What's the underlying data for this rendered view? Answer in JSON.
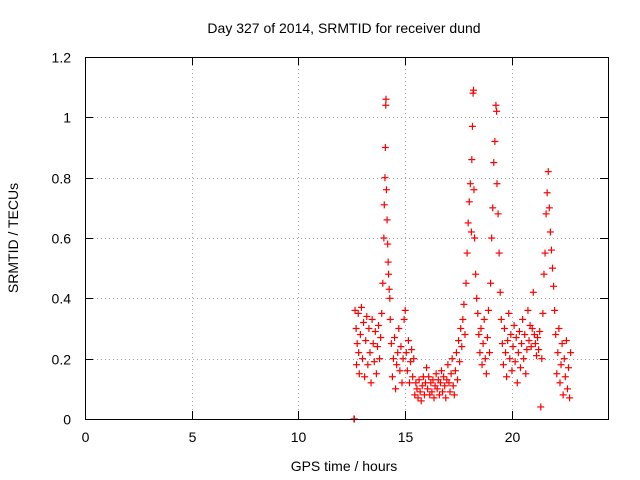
{
  "chart_data": {
    "type": "scatter",
    "title": "Day 327 of 2014, SRMTID for receiver dund",
    "xlabel": "GPS time / hours",
    "ylabel": "SRMTID / TECUs",
    "xlim": [
      0,
      24.5
    ],
    "ylim": [
      0,
      1.2
    ],
    "x_ticks": [
      0,
      5,
      10,
      15,
      20
    ],
    "x_tick_labels": [
      "0",
      "5",
      "10",
      "15",
      "20"
    ],
    "y_ticks": [
      0,
      0.2,
      0.4,
      0.6,
      0.8,
      1,
      1.2
    ],
    "y_tick_labels": [
      "0",
      "0.2",
      "0.4",
      "0.6",
      "0.8",
      "1",
      "1.2"
    ],
    "grid": true,
    "marker": "+",
    "marker_color": "#ff0000",
    "series": [
      {
        "name": "SRMTID",
        "points": [
          [
            12.6,
            0.0
          ],
          [
            12.62,
            0.0
          ],
          [
            12.65,
            0.36
          ],
          [
            12.7,
            0.3
          ],
          [
            12.72,
            0.18
          ],
          [
            12.75,
            0.25
          ],
          [
            12.8,
            0.35
          ],
          [
            12.82,
            0.22
          ],
          [
            12.85,
            0.15
          ],
          [
            12.9,
            0.28
          ],
          [
            12.95,
            0.37
          ],
          [
            13.0,
            0.2
          ],
          [
            13.05,
            0.32
          ],
          [
            13.1,
            0.14
          ],
          [
            13.15,
            0.26
          ],
          [
            13.2,
            0.34
          ],
          [
            13.25,
            0.18
          ],
          [
            13.3,
            0.3
          ],
          [
            13.35,
            0.22
          ],
          [
            13.4,
            0.12
          ],
          [
            13.45,
            0.33
          ],
          [
            13.5,
            0.25
          ],
          [
            13.55,
            0.19
          ],
          [
            13.6,
            0.29
          ],
          [
            13.65,
            0.15
          ],
          [
            13.7,
            0.24
          ],
          [
            13.75,
            0.31
          ],
          [
            13.8,
            0.2
          ],
          [
            13.85,
            0.27
          ],
          [
            13.9,
            0.35
          ],
          [
            13.95,
            0.45
          ],
          [
            14.0,
            0.6
          ],
          [
            14.02,
            0.71
          ],
          [
            14.05,
            0.8
          ],
          [
            14.07,
            0.9
          ],
          [
            14.09,
            1.04
          ],
          [
            14.1,
            1.06
          ],
          [
            14.12,
            0.76
          ],
          [
            14.15,
            0.66
          ],
          [
            14.18,
            0.58
          ],
          [
            14.2,
            0.52
          ],
          [
            14.22,
            0.48
          ],
          [
            14.25,
            0.43
          ],
          [
            14.28,
            0.4
          ],
          [
            14.3,
            0.33
          ],
          [
            14.35,
            0.25
          ],
          [
            14.4,
            0.14
          ],
          [
            14.45,
            0.2
          ],
          [
            14.5,
            0.27
          ],
          [
            14.55,
            0.1
          ],
          [
            14.6,
            0.18
          ],
          [
            14.65,
            0.22
          ],
          [
            14.7,
            0.3
          ],
          [
            14.75,
            0.16
          ],
          [
            14.8,
            0.24
          ],
          [
            14.85,
            0.12
          ],
          [
            14.9,
            0.2
          ],
          [
            14.95,
            0.33
          ],
          [
            15.0,
            0.36
          ],
          [
            15.05,
            0.22
          ],
          [
            15.1,
            0.16
          ],
          [
            15.15,
            0.26
          ],
          [
            15.2,
            0.12
          ],
          [
            15.25,
            0.19
          ],
          [
            15.3,
            0.23
          ],
          [
            15.35,
            0.14
          ],
          [
            15.4,
            0.2
          ],
          [
            15.45,
            0.08
          ],
          [
            15.5,
            0.12
          ],
          [
            15.55,
            0.1
          ],
          [
            15.6,
            0.07
          ],
          [
            15.65,
            0.13
          ],
          [
            15.7,
            0.09
          ],
          [
            15.75,
            0.06
          ],
          [
            15.8,
            0.11
          ],
          [
            15.85,
            0.14
          ],
          [
            15.9,
            0.08
          ],
          [
            15.95,
            0.12
          ],
          [
            16.0,
            0.17
          ],
          [
            16.05,
            0.1
          ],
          [
            16.1,
            0.14
          ],
          [
            16.15,
            0.08
          ],
          [
            16.2,
            0.12
          ],
          [
            16.25,
            0.09
          ],
          [
            16.3,
            0.13
          ],
          [
            16.35,
            0.07
          ],
          [
            16.4,
            0.11
          ],
          [
            16.45,
            0.15
          ],
          [
            16.5,
            0.1
          ],
          [
            16.55,
            0.13
          ],
          [
            16.6,
            0.08
          ],
          [
            16.65,
            0.12
          ],
          [
            16.7,
            0.16
          ],
          [
            16.75,
            0.09
          ],
          [
            16.8,
            0.14
          ],
          [
            16.85,
            0.11
          ],
          [
            16.9,
            0.07
          ],
          [
            16.95,
            0.13
          ],
          [
            17.0,
            0.18
          ],
          [
            17.05,
            0.12
          ],
          [
            17.1,
            0.09
          ],
          [
            17.15,
            0.15
          ],
          [
            17.2,
            0.2
          ],
          [
            17.25,
            0.11
          ],
          [
            17.3,
            0.08
          ],
          [
            17.35,
            0.16
          ],
          [
            17.4,
            0.22
          ],
          [
            17.45,
            0.13
          ],
          [
            17.5,
            0.26
          ],
          [
            17.55,
            0.19
          ],
          [
            17.6,
            0.3
          ],
          [
            17.65,
            0.24
          ],
          [
            17.7,
            0.33
          ],
          [
            17.75,
            0.38
          ],
          [
            17.8,
            0.28
          ],
          [
            17.85,
            0.45
          ],
          [
            17.9,
            0.55
          ],
          [
            17.95,
            0.65
          ],
          [
            18.0,
            0.72
          ],
          [
            18.05,
            0.78
          ],
          [
            18.1,
            0.62
          ],
          [
            18.12,
            0.86
          ],
          [
            18.15,
            0.97
          ],
          [
            18.18,
            1.08
          ],
          [
            18.2,
            1.09
          ],
          [
            18.22,
            0.76
          ],
          [
            18.25,
            0.6
          ],
          [
            18.3,
            0.48
          ],
          [
            18.35,
            0.4
          ],
          [
            18.4,
            0.35
          ],
          [
            18.45,
            0.28
          ],
          [
            18.5,
            0.22
          ],
          [
            18.55,
            0.3
          ],
          [
            18.6,
            0.18
          ],
          [
            18.65,
            0.25
          ],
          [
            18.7,
            0.33
          ],
          [
            18.75,
            0.2
          ],
          [
            18.8,
            0.15
          ],
          [
            18.85,
            0.27
          ],
          [
            18.9,
            0.36
          ],
          [
            18.95,
            0.22
          ],
          [
            19.0,
            0.45
          ],
          [
            19.05,
            0.6
          ],
          [
            19.1,
            0.7
          ],
          [
            19.15,
            0.85
          ],
          [
            19.2,
            0.92
          ],
          [
            19.25,
            1.04
          ],
          [
            19.28,
            1.02
          ],
          [
            19.3,
            0.78
          ],
          [
            19.35,
            0.68
          ],
          [
            19.4,
            0.55
          ],
          [
            19.45,
            0.42
          ],
          [
            19.5,
            0.33
          ],
          [
            19.55,
            0.25
          ],
          [
            19.6,
            0.18
          ],
          [
            19.65,
            0.3
          ],
          [
            19.7,
            0.22
          ],
          [
            19.75,
            0.14
          ],
          [
            19.8,
            0.26
          ],
          [
            19.85,
            0.35
          ],
          [
            19.9,
            0.2
          ],
          [
            19.95,
            0.28
          ],
          [
            20.0,
            0.16
          ],
          [
            20.05,
            0.24
          ],
          [
            20.1,
            0.31
          ],
          [
            20.15,
            0.19
          ],
          [
            20.2,
            0.27
          ],
          [
            20.25,
            0.12
          ],
          [
            20.3,
            0.22
          ],
          [
            20.35,
            0.29
          ],
          [
            20.4,
            0.17
          ],
          [
            20.45,
            0.25
          ],
          [
            20.5,
            0.33
          ],
          [
            20.55,
            0.2
          ],
          [
            20.6,
            0.28
          ],
          [
            20.65,
            0.15
          ],
          [
            20.7,
            0.23
          ],
          [
            20.75,
            0.36
          ],
          [
            20.8,
            0.26
          ],
          [
            20.85,
            0.31
          ],
          [
            20.9,
            0.24
          ],
          [
            20.95,
            0.3
          ],
          [
            21.0,
            0.42
          ],
          [
            21.05,
            0.28
          ],
          [
            21.1,
            0.25
          ],
          [
            21.15,
            0.21
          ],
          [
            21.2,
            0.27
          ],
          [
            21.25,
            0.23
          ],
          [
            21.3,
            0.29
          ],
          [
            21.35,
            0.04
          ],
          [
            21.4,
            0.2
          ],
          [
            21.45,
            0.35
          ],
          [
            21.5,
            0.48
          ],
          [
            21.55,
            0.55
          ],
          [
            21.6,
            0.68
          ],
          [
            21.65,
            0.75
          ],
          [
            21.7,
            0.82
          ],
          [
            21.75,
            0.7
          ],
          [
            21.8,
            0.62
          ],
          [
            21.85,
            0.56
          ],
          [
            21.9,
            0.5
          ],
          [
            21.95,
            0.44
          ],
          [
            22.0,
            0.36
          ],
          [
            22.05,
            0.28
          ],
          [
            22.1,
            0.15
          ],
          [
            22.15,
            0.22
          ],
          [
            22.2,
            0.3
          ],
          [
            22.25,
            0.12
          ],
          [
            22.3,
            0.18
          ],
          [
            22.35,
            0.25
          ],
          [
            22.4,
            0.08
          ],
          [
            22.45,
            0.2
          ],
          [
            22.5,
            0.14
          ],
          [
            22.55,
            0.26
          ],
          [
            22.6,
            0.1
          ],
          [
            22.65,
            0.17
          ],
          [
            22.7,
            0.07
          ],
          [
            22.75,
            0.22
          ]
        ]
      }
    ]
  }
}
